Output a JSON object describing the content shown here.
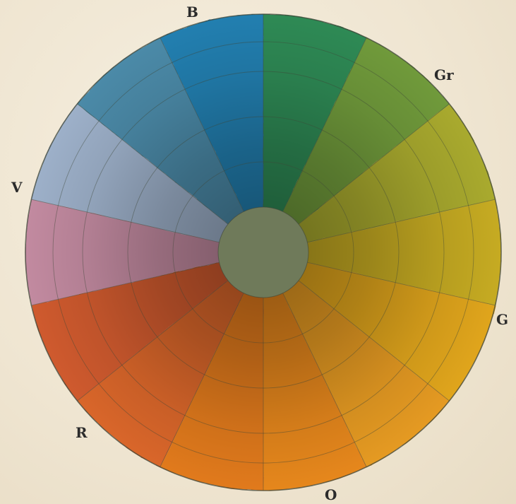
{
  "labels": {
    "b": "B",
    "gr": "Gr",
    "v": "V",
    "g": "G",
    "r": "R",
    "o": "O"
  },
  "colors": {
    "paper": "#f1e9d8",
    "center": "#6f7a5a",
    "line": "#3f4638",
    "segments": [
      "#2f8a55",
      "#6f9a3a",
      "#a9aa2e",
      "#c6ab24",
      "#e0a51f",
      "#e59a22",
      "#e6871f",
      "#e17a1f",
      "#d9662a",
      "#cf5a2f",
      "#c28aa0",
      "#9db0c9",
      "#4b8aa8",
      "#237fb0"
    ]
  }
}
